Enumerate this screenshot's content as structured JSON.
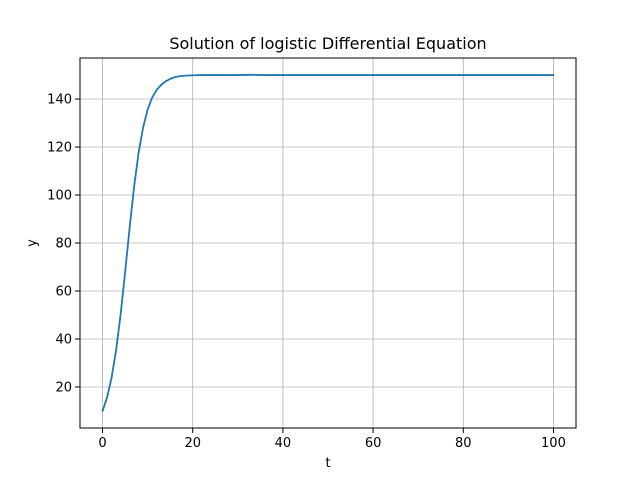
{
  "chart_data": {
    "type": "line",
    "title": "Solution of logistic Differential Equation",
    "xlabel": "t",
    "ylabel": "y",
    "xlim": [
      -5,
      105
    ],
    "ylim": [
      2.9,
      157.1
    ],
    "xticks": [
      0,
      20,
      40,
      60,
      80,
      100
    ],
    "yticks": [
      20,
      40,
      60,
      80,
      100,
      120,
      140
    ],
    "xtick_labels": [
      "0",
      "20",
      "40",
      "60",
      "80",
      "100"
    ],
    "ytick_labels": [
      "20",
      "40",
      "60",
      "80",
      "100",
      "120",
      "140"
    ],
    "grid": true,
    "legend": "none",
    "series": [
      {
        "color": "#1f77b4",
        "x": [
          0,
          1,
          2,
          3,
          4,
          5,
          6,
          7,
          8,
          9,
          10,
          11,
          12,
          13,
          14,
          15,
          16,
          17,
          18,
          20,
          22,
          25,
          30,
          33,
          35,
          40,
          45,
          50,
          55,
          60,
          65,
          70,
          75,
          80,
          85,
          90,
          95,
          100
        ],
        "y": [
          10,
          15.6,
          23.8,
          35.2,
          50.1,
          67.7,
          86.3,
          103.5,
          117.7,
          128.2,
          135.6,
          140.6,
          143.8,
          145.9,
          147.4,
          148.4,
          149.1,
          149.5,
          149.7,
          149.9,
          150.0,
          150.0,
          150.0,
          150.1,
          150.0,
          150.0,
          150.0,
          150.0,
          150.0,
          150.0,
          150.0,
          150.0,
          150.0,
          150.0,
          150.0,
          150.0,
          150.0,
          150.0
        ]
      }
    ]
  }
}
